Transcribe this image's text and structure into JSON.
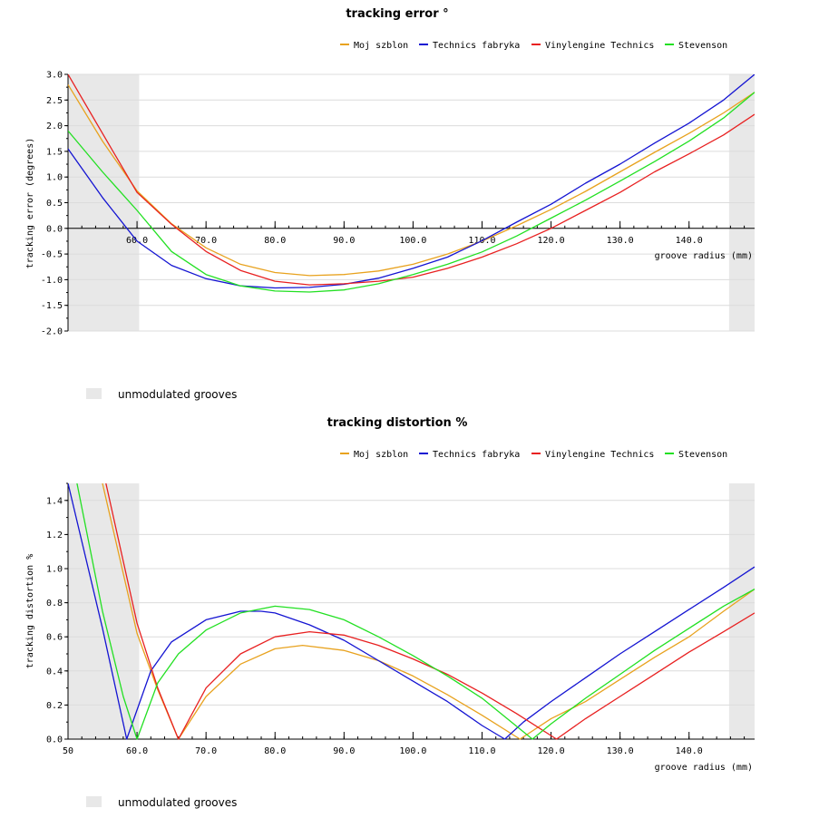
{
  "chart_data": [
    {
      "type": "line",
      "title": "tracking error °",
      "xlabel": "groove radius (mm)",
      "ylabel": "tracking error (degrees)",
      "xlim": [
        50,
        149.5
      ],
      "ylim": [
        -2.0,
        3.0
      ],
      "x_tick_labels": [
        "60.0",
        "70.0",
        "80.0",
        "90.0",
        "100.0",
        "110.0",
        "120.0",
        "130.0",
        "140.0"
      ],
      "x_tick_values": [
        60,
        70,
        80,
        90,
        100,
        110,
        120,
        130,
        140
      ],
      "y_tick_labels": [
        "3.0",
        "2.5",
        "2.0",
        "1.5",
        "1.0",
        "0.5",
        "0.0",
        "-0.5",
        "-1.0",
        "-1.5",
        "-2.0"
      ],
      "y_tick_values": [
        3.0,
        2.5,
        2.0,
        1.5,
        1.0,
        0.5,
        0.0,
        -0.5,
        -1.0,
        -1.5,
        -2.0
      ],
      "shaded_regions": [
        [
          50,
          60.3
        ],
        [
          145.8,
          149.5
        ]
      ],
      "shaded_label": "unmodulated grooves",
      "series": [
        {
          "name": "Moj szblon",
          "color": "#e8a21e",
          "x": [
            50,
            55,
            60,
            65,
            70,
            75,
            80,
            85,
            90,
            95,
            100,
            105,
            110,
            115,
            120,
            125,
            130,
            135,
            140,
            145,
            149.5
          ],
          "values": [
            2.8,
            1.7,
            0.73,
            0.09,
            -0.38,
            -0.7,
            -0.86,
            -0.92,
            -0.9,
            -0.83,
            -0.7,
            -0.5,
            -0.25,
            0.05,
            0.37,
            0.72,
            1.1,
            1.48,
            1.85,
            2.25,
            2.65
          ]
        },
        {
          "name": "Technics fabryka",
          "color": "#1414d2",
          "x": [
            50,
            55,
            60,
            65,
            70,
            75,
            80,
            85,
            90,
            95,
            100,
            105,
            110,
            115,
            120,
            125,
            130,
            135,
            140,
            145,
            149.5
          ],
          "values": [
            1.55,
            0.6,
            -0.25,
            -0.72,
            -0.98,
            -1.12,
            -1.16,
            -1.15,
            -1.09,
            -0.97,
            -0.78,
            -0.56,
            -0.24,
            0.12,
            0.47,
            0.88,
            1.25,
            1.66,
            2.05,
            2.5,
            3.0
          ]
        },
        {
          "name": "Vinylengine Technics",
          "color": "#e82020",
          "x": [
            50,
            55,
            60,
            65,
            70,
            75,
            80,
            85,
            90,
            95,
            100,
            105,
            110,
            115,
            120,
            125,
            130,
            135,
            140,
            145,
            149.5
          ],
          "values": [
            3.0,
            1.85,
            0.7,
            0.08,
            -0.45,
            -0.82,
            -1.03,
            -1.1,
            -1.08,
            -1.03,
            -0.95,
            -0.78,
            -0.56,
            -0.3,
            0.0,
            0.35,
            0.7,
            1.1,
            1.45,
            1.82,
            2.22
          ]
        },
        {
          "name": "Stevenson",
          "color": "#22e022",
          "x": [
            50,
            55,
            60,
            65,
            70,
            75,
            80,
            85,
            90,
            95,
            100,
            105,
            110,
            115,
            120,
            125,
            130,
            135,
            140,
            145,
            149.5
          ],
          "values": [
            1.9,
            1.1,
            0.35,
            -0.45,
            -0.9,
            -1.12,
            -1.22,
            -1.24,
            -1.2,
            -1.08,
            -0.9,
            -0.7,
            -0.46,
            -0.15,
            0.2,
            0.55,
            0.92,
            1.3,
            1.7,
            2.15,
            2.65
          ]
        }
      ]
    },
    {
      "type": "line",
      "title": "tracking distortion %",
      "xlabel": "groove radius (mm)",
      "ylabel": "tracking distortion %",
      "xlim": [
        50,
        149.5
      ],
      "ylim": [
        0.0,
        1.5
      ],
      "x_tick_labels": [
        "50",
        "60.0",
        "70.0",
        "80.0",
        "90.0",
        "100.0",
        "110.0",
        "120.0",
        "130.0",
        "140.0"
      ],
      "x_tick_values": [
        50,
        60,
        70,
        80,
        90,
        100,
        110,
        120,
        130,
        140
      ],
      "y_tick_labels": [
        "1.4",
        "1.2",
        "1.0",
        "0.8",
        "0.6",
        "0.4",
        "0.2",
        "0.0"
      ],
      "y_tick_values": [
        1.4,
        1.2,
        1.0,
        0.8,
        0.6,
        0.4,
        0.2,
        0.0
      ],
      "shaded_regions": [
        [
          50,
          60.3
        ],
        [
          145.8,
          149.5
        ]
      ],
      "shaded_label": "unmodulated grooves",
      "series": [
        {
          "name": "Moj szblon",
          "color": "#e8a21e",
          "x": [
            55,
            60,
            63,
            66,
            70,
            75,
            80,
            84,
            90,
            95,
            100,
            105,
            110,
            115.5,
            120,
            125,
            130,
            135,
            140,
            145,
            149.5
          ],
          "values": [
            1.5,
            0.62,
            0.29,
            0.0,
            0.25,
            0.44,
            0.53,
            0.55,
            0.52,
            0.46,
            0.37,
            0.26,
            0.14,
            0.0,
            0.12,
            0.22,
            0.35,
            0.48,
            0.6,
            0.75,
            0.88
          ]
        },
        {
          "name": "Technics fabryka",
          "color": "#1414d2",
          "x": [
            50,
            55,
            58.5,
            62,
            65,
            70,
            75,
            78,
            80,
            85,
            90,
            95,
            100,
            105,
            110,
            113.3,
            116,
            120,
            125,
            130,
            135,
            140,
            145,
            149.5
          ],
          "values": [
            1.5,
            0.65,
            0.0,
            0.4,
            0.57,
            0.7,
            0.75,
            0.75,
            0.74,
            0.67,
            0.58,
            0.46,
            0.34,
            0.22,
            0.08,
            0.0,
            0.1,
            0.22,
            0.36,
            0.5,
            0.63,
            0.76,
            0.89,
            1.01
          ]
        },
        {
          "name": "Vinylengine Technics",
          "color": "#e82020",
          "x": [
            55.5,
            60,
            63,
            66,
            70,
            75,
            80,
            85,
            90,
            95,
            100,
            105,
            110,
            115,
            120.8,
            125,
            130,
            135,
            140,
            145,
            149.5
          ],
          "values": [
            1.5,
            0.68,
            0.3,
            0.0,
            0.3,
            0.5,
            0.6,
            0.63,
            0.61,
            0.55,
            0.47,
            0.38,
            0.27,
            0.15,
            0.0,
            0.12,
            0.25,
            0.38,
            0.51,
            0.63,
            0.74
          ]
        },
        {
          "name": "Stevenson",
          "color": "#22e022",
          "x": [
            51.3,
            55,
            58,
            60,
            63,
            66,
            70,
            75,
            80,
            85,
            90,
            95,
            100,
            105,
            110,
            117.3,
            120,
            125,
            130,
            135,
            140,
            145,
            149.5
          ],
          "values": [
            1.5,
            0.75,
            0.25,
            0.0,
            0.33,
            0.5,
            0.64,
            0.74,
            0.78,
            0.76,
            0.7,
            0.6,
            0.49,
            0.37,
            0.24,
            0.0,
            0.09,
            0.24,
            0.38,
            0.52,
            0.65,
            0.78,
            0.88
          ]
        }
      ]
    }
  ]
}
